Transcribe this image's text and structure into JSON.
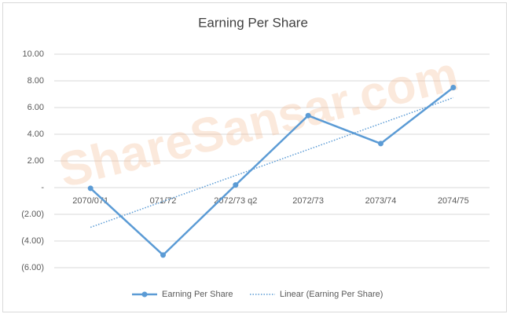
{
  "chart_data": {
    "type": "line",
    "title": "Earning Per Share",
    "watermark": "ShareSansar.com",
    "categories": [
      "2070/071",
      "071/72",
      "2072/73 q2",
      "2072/73",
      "2073/74",
      "2074/75"
    ],
    "series": [
      {
        "name": "Earning Per Share",
        "color": "#5b9bd5",
        "values": [
          -0.05,
          -5.05,
          0.2,
          5.4,
          3.3,
          7.5
        ]
      }
    ],
    "trendline": {
      "name": "Linear (Earning Per Share)",
      "kind": "linear",
      "color": "#5b9bd5"
    },
    "ylim": [
      -6,
      10
    ],
    "yticks": [
      {
        "value": -6,
        "label": "(6.00)"
      },
      {
        "value": -4,
        "label": "(4.00)"
      },
      {
        "value": -2,
        "label": "(2.00)"
      },
      {
        "value": 0,
        "label": "-"
      },
      {
        "value": 2,
        "label": "2.00"
      },
      {
        "value": 4,
        "label": "4.00"
      },
      {
        "value": 6,
        "label": "6.00"
      },
      {
        "value": 8,
        "label": "8.00"
      },
      {
        "value": 10,
        "label": "10.00"
      }
    ],
    "grid": true,
    "legend": "bottom"
  }
}
